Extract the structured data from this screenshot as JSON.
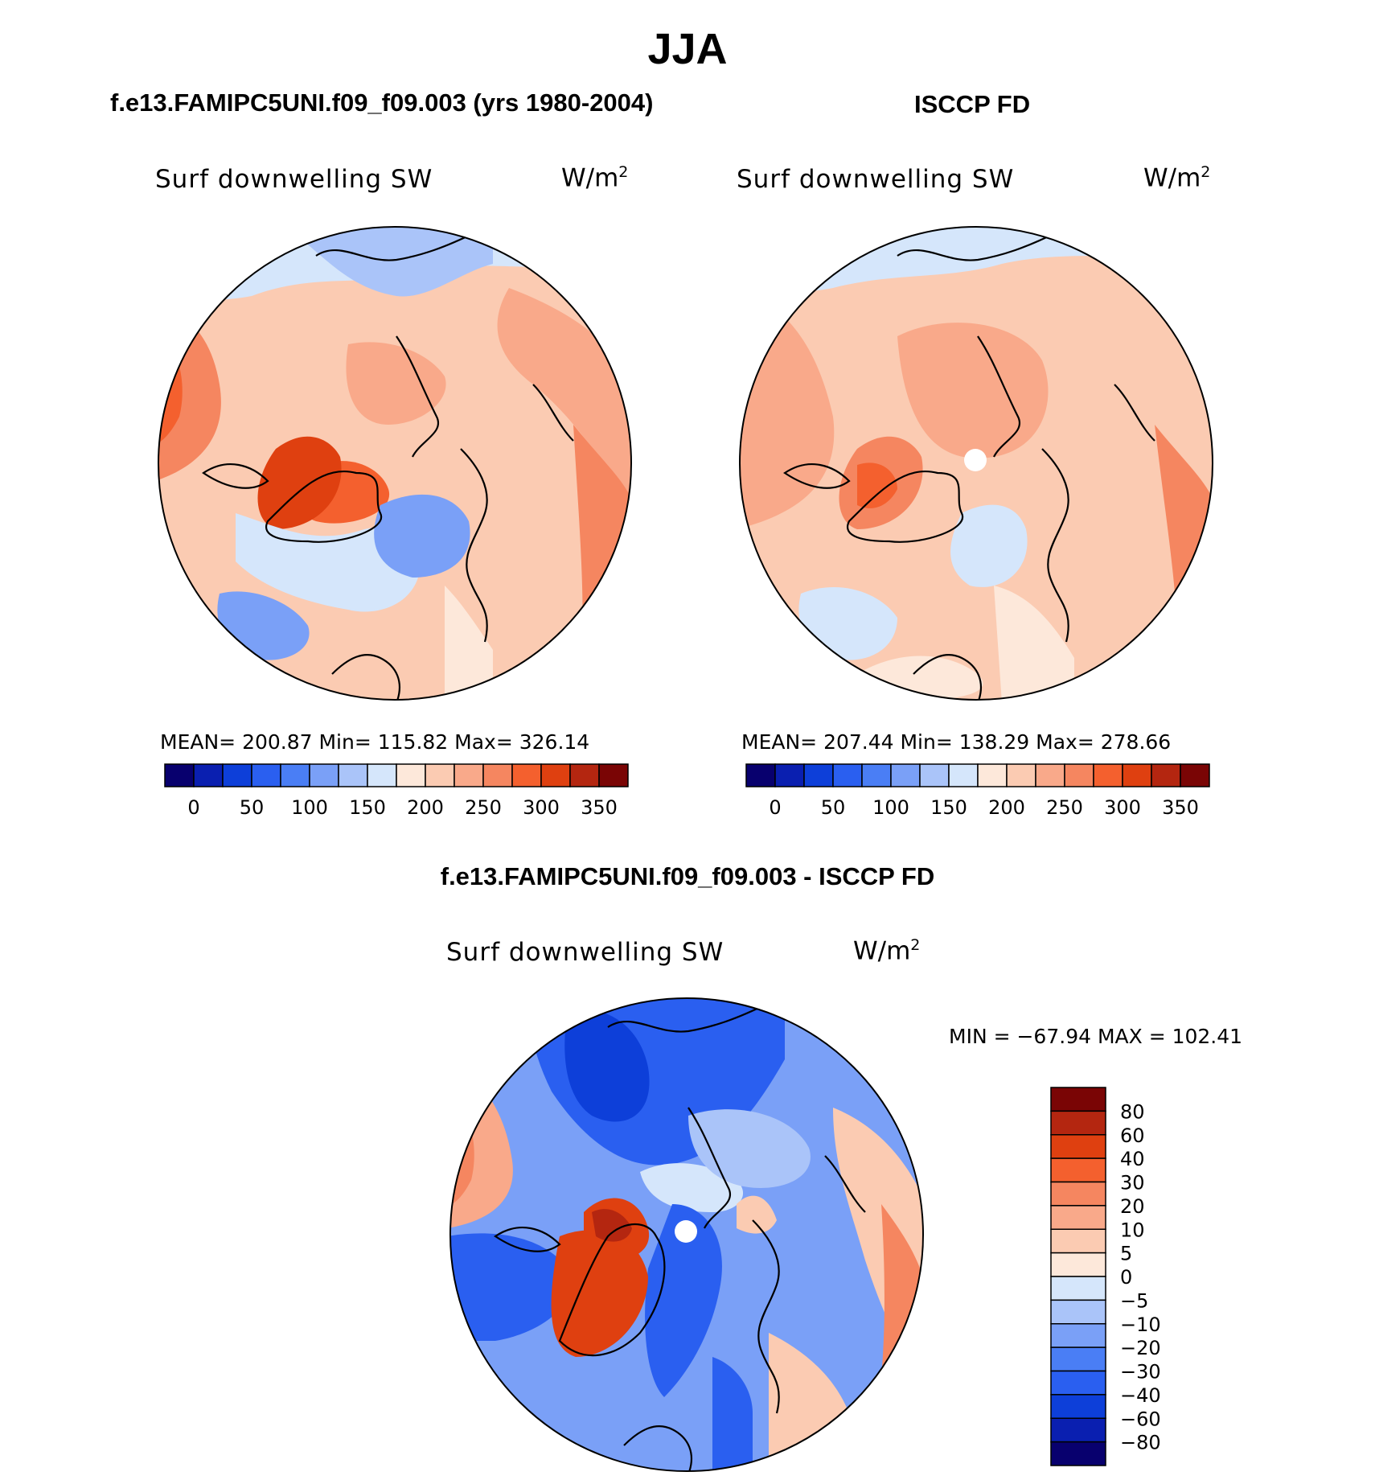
{
  "title": "JJA",
  "palette": {
    "seq": [
      "#08006e",
      "#0a1fb0",
      "#0d3fd9",
      "#2a5ff0",
      "#4a7ef5",
      "#7aa0f7",
      "#aac4f9",
      "#d5e6fb",
      "#fde8da",
      "#fbcbb2",
      "#f9a98a",
      "#f58660",
      "#f4602e",
      "#df4010",
      "#b42610",
      "#7a0505"
    ],
    "diff": [
      "#08006e",
      "#0a1fb0",
      "#0d3fd9",
      "#2a5ff0",
      "#4a7ef5",
      "#7aa0f7",
      "#aac4f9",
      "#d5e6fb",
      "#fde8da",
      "#fbcbb2",
      "#f9a98a",
      "#f58660",
      "#f4602e",
      "#df4010",
      "#b42610",
      "#7a0505"
    ]
  },
  "panels": {
    "model": {
      "title": "f.e13.FAMIPC5UNI.f09_f09.003 (yrs 1980-2004)",
      "variable": "Surf downwelling SW",
      "units": "W/m",
      "units_exp": "2",
      "stats": "MEAN=  200.87    Min=  115.82    Max=  326.14",
      "colorbar_labels": [
        "0",
        "50",
        "100",
        "150",
        "200",
        "250",
        "300",
        "350"
      ]
    },
    "obs": {
      "title": "ISCCP FD",
      "variable": "Surf downwelling SW",
      "units": "W/m",
      "units_exp": "2",
      "stats": "MEAN=  207.44    Min=  138.29    Max=  278.66",
      "colorbar_labels": [
        "0",
        "50",
        "100",
        "150",
        "200",
        "250",
        "300",
        "350"
      ]
    },
    "diff": {
      "title": "f.e13.FAMIPC5UNI.f09_f09.003 - ISCCP FD",
      "variable": "Surf downwelling SW",
      "units": "W/m",
      "units_exp": "2",
      "stats": "MIN  =  −67.94  MAX  =  102.41",
      "colorbar_labels": [
        "80",
        "60",
        "40",
        "30",
        "20",
        "10",
        "5",
        "0",
        "−5",
        "−10",
        "−20",
        "−30",
        "−40",
        "−60",
        "−80"
      ]
    }
  },
  "chart_data": [
    {
      "type": "heatmap",
      "title": "f.e13.FAMIPC5UNI.f09_f09.003 (yrs 1980-2004)",
      "variable": "Surf downwelling SW",
      "units": "W/m2",
      "mean": 200.87,
      "min": 115.82,
      "max": 326.14,
      "contour_levels": [
        0,
        25,
        50,
        75,
        100,
        125,
        150,
        175,
        200,
        225,
        250,
        275,
        300,
        325,
        350
      ]
    },
    {
      "type": "heatmap",
      "title": "ISCCP FD",
      "variable": "Surf downwelling SW",
      "units": "W/m2",
      "mean": 207.44,
      "min": 138.29,
      "max": 278.66,
      "contour_levels": [
        0,
        25,
        50,
        75,
        100,
        125,
        150,
        175,
        200,
        225,
        250,
        275,
        300,
        325,
        350
      ]
    },
    {
      "type": "heatmap",
      "title": "f.e13.FAMIPC5UNI.f09_f09.003 - ISCCP FD",
      "variable": "Surf downwelling SW",
      "units": "W/m2",
      "min": -67.94,
      "max": 102.41,
      "contour_levels": [
        -80,
        -60,
        -40,
        -30,
        -20,
        -10,
        -5,
        0,
        5,
        10,
        20,
        30,
        40,
        60,
        80
      ]
    }
  ]
}
